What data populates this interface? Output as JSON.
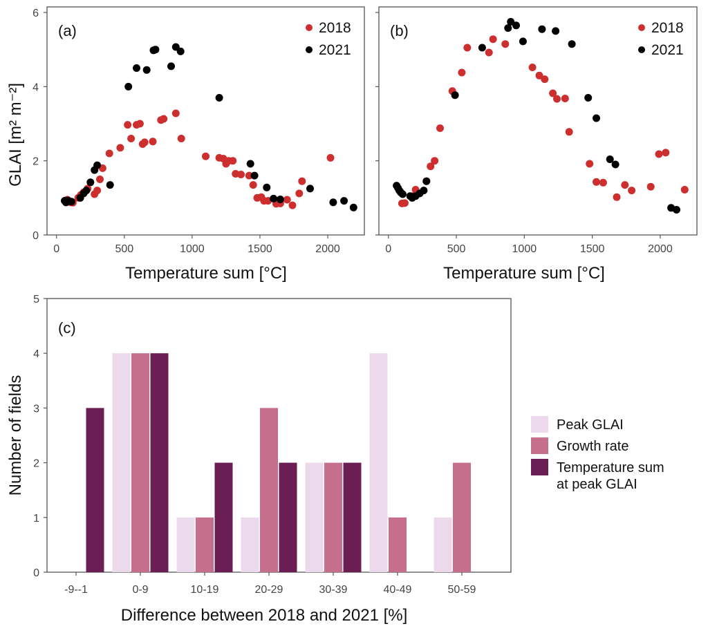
{
  "chart_data": [
    {
      "panel": "(a)",
      "type": "scatter",
      "xlabel": "Temperature sum [°C]",
      "ylabel": "GLAI [m² m⁻²]",
      "xlim": [
        -70,
        2270
      ],
      "ylim": [
        0,
        6.15
      ],
      "xticks": [
        0,
        500,
        1000,
        1500,
        2000
      ],
      "yticks": [
        0,
        2,
        4,
        6
      ],
      "legend_position": "top-right",
      "series": [
        {
          "name": "2018",
          "color": "#cd2f2f",
          "points": [
            [
              65,
              0.93
            ],
            [
              70,
              0.88
            ],
            [
              80,
              0.95
            ],
            [
              95,
              0.9
            ],
            [
              105,
              0.88
            ],
            [
              120,
              0.87
            ],
            [
              160,
              1.0
            ],
            [
              180,
              1.08
            ],
            [
              200,
              1.15
            ],
            [
              230,
              1.25
            ],
            [
              280,
              1.1
            ],
            [
              300,
              1.2
            ],
            [
              320,
              1.5
            ],
            [
              340,
              1.8
            ],
            [
              390,
              2.2
            ],
            [
              470,
              2.35
            ],
            [
              525,
              2.97
            ],
            [
              550,
              2.6
            ],
            [
              590,
              2.97
            ],
            [
              615,
              3.0
            ],
            [
              635,
              2.45
            ],
            [
              650,
              2.5
            ],
            [
              710,
              2.52
            ],
            [
              770,
              3.1
            ],
            [
              790,
              3.13
            ],
            [
              880,
              3.28
            ],
            [
              920,
              2.6
            ],
            [
              1100,
              2.12
            ],
            [
              1200,
              2.08
            ],
            [
              1230,
              2.06
            ],
            [
              1250,
              1.92
            ],
            [
              1270,
              2.0
            ],
            [
              1300,
              2.0
            ],
            [
              1320,
              1.65
            ],
            [
              1360,
              1.63
            ],
            [
              1420,
              1.6
            ],
            [
              1450,
              1.35
            ],
            [
              1480,
              1.0
            ],
            [
              1510,
              1.02
            ],
            [
              1530,
              0.92
            ],
            [
              1560,
              0.92
            ],
            [
              1620,
              0.84
            ],
            [
              1650,
              0.85
            ],
            [
              1700,
              0.95
            ],
            [
              1740,
              0.8
            ],
            [
              1790,
              1.12
            ],
            [
              1810,
              1.45
            ],
            [
              2020,
              2.08
            ]
          ]
        },
        {
          "name": "2021",
          "color": "#000000",
          "points": [
            [
              60,
              0.92
            ],
            [
              70,
              0.88
            ],
            [
              85,
              0.93
            ],
            [
              110,
              0.9
            ],
            [
              175,
              1.0
            ],
            [
              200,
              1.12
            ],
            [
              220,
              1.2
            ],
            [
              250,
              1.42
            ],
            [
              280,
              1.75
            ],
            [
              300,
              1.88
            ],
            [
              395,
              1.35
            ],
            [
              530,
              4.0
            ],
            [
              590,
              4.5
            ],
            [
              665,
              4.45
            ],
            [
              715,
              4.98
            ],
            [
              730,
              5.0
            ],
            [
              845,
              4.55
            ],
            [
              880,
              5.07
            ],
            [
              915,
              4.95
            ],
            [
              1200,
              3.7
            ],
            [
              1430,
              1.92
            ],
            [
              1460,
              1.6
            ],
            [
              1550,
              1.28
            ],
            [
              1600,
              0.98
            ],
            [
              1650,
              0.96
            ],
            [
              1870,
              1.25
            ],
            [
              2040,
              0.88
            ],
            [
              2120,
              0.92
            ],
            [
              2190,
              0.74
            ]
          ]
        }
      ]
    },
    {
      "panel": "(b)",
      "type": "scatter",
      "xlabel": "Temperature sum [°C]",
      "ylabel": "",
      "xlim": [
        -70,
        2270
      ],
      "ylim": [
        0,
        6.15
      ],
      "xticks": [
        0,
        500,
        1000,
        1500,
        2000
      ],
      "yticks": [
        0,
        2,
        4,
        6
      ],
      "legend_position": "top-right",
      "series": [
        {
          "name": "2018",
          "color": "#cd2f2f",
          "points": [
            [
              100,
              0.85
            ],
            [
              120,
              0.86
            ],
            [
              180,
              1.05
            ],
            [
              200,
              1.22
            ],
            [
              280,
              1.45
            ],
            [
              310,
              1.85
            ],
            [
              340,
              2.0
            ],
            [
              380,
              2.88
            ],
            [
              470,
              3.88
            ],
            [
              540,
              4.38
            ],
            [
              580,
              5.05
            ],
            [
              740,
              4.92
            ],
            [
              770,
              5.28
            ],
            [
              860,
              5.15
            ],
            [
              1060,
              4.52
            ],
            [
              1110,
              4.3
            ],
            [
              1150,
              4.2
            ],
            [
              1210,
              3.82
            ],
            [
              1240,
              3.67
            ],
            [
              1300,
              3.68
            ],
            [
              1330,
              2.78
            ],
            [
              1480,
              1.92
            ],
            [
              1530,
              1.43
            ],
            [
              1580,
              1.41
            ],
            [
              1680,
              1.02
            ],
            [
              1740,
              1.35
            ],
            [
              1790,
              1.2
            ],
            [
              1930,
              1.3
            ],
            [
              1990,
              2.18
            ],
            [
              2040,
              2.22
            ],
            [
              2180,
              1.22
            ]
          ]
        },
        {
          "name": "2021",
          "color": "#000000",
          "points": [
            [
              60,
              1.33
            ],
            [
              70,
              1.27
            ],
            [
              80,
              1.2
            ],
            [
              90,
              1.15
            ],
            [
              105,
              1.1
            ],
            [
              160,
              1.05
            ],
            [
              175,
              1.0
            ],
            [
              200,
              1.05
            ],
            [
              230,
              1.12
            ],
            [
              260,
              1.2
            ],
            [
              280,
              1.45
            ],
            [
              490,
              3.77
            ],
            [
              690,
              5.05
            ],
            [
              880,
              5.58
            ],
            [
              900,
              5.75
            ],
            [
              940,
              5.65
            ],
            [
              990,
              5.22
            ],
            [
              1130,
              5.55
            ],
            [
              1230,
              5.5
            ],
            [
              1350,
              5.15
            ],
            [
              1470,
              3.7
            ],
            [
              1530,
              3.15
            ],
            [
              1630,
              2.04
            ],
            [
              1670,
              1.9
            ],
            [
              2080,
              0.73
            ],
            [
              2120,
              0.68
            ]
          ]
        }
      ]
    },
    {
      "panel": "(c)",
      "type": "bar",
      "xlabel": "Difference between 2018 and 2021 [%]",
      "ylabel": "Number of fields",
      "ylim": [
        0,
        5
      ],
      "yticks": [
        0,
        1,
        2,
        3,
        4,
        5
      ],
      "categories": [
        "-9--1",
        "0-9",
        "10-19",
        "20-29",
        "30-39",
        "40-49",
        "50-59"
      ],
      "legend_position": "right",
      "series": [
        {
          "name": "Peak GLAI",
          "color": "#ecdaec",
          "values": [
            0,
            4,
            1,
            1,
            2,
            4,
            1
          ]
        },
        {
          "name": "Growth rate",
          "color": "#c56f8d",
          "values": [
            0,
            4,
            1,
            3,
            2,
            1,
            2
          ]
        },
        {
          "name": "Temperature sum at peak GLAI",
          "color": "#6b1e54",
          "values": [
            3,
            4,
            2,
            2,
            2,
            0,
            0
          ]
        }
      ]
    }
  ]
}
